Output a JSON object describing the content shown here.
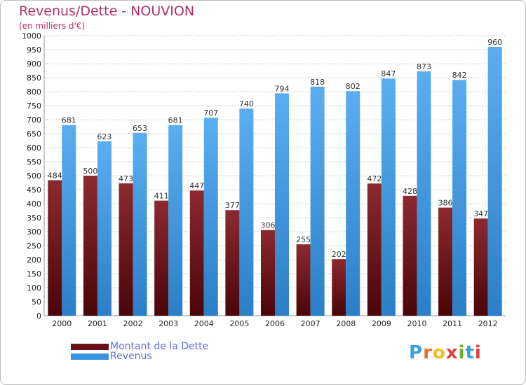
{
  "title": "Revenus/Dette - NOUVION",
  "subtitle": "(en milliers d'€)",
  "colors": {
    "title": "#b0306a",
    "dette_top": "#8b2a2f",
    "dette_bottom": "#4a0508",
    "revenus_top": "#5aaef0",
    "revenus_bottom": "#2a7fc8",
    "grid": "#cfcfcf",
    "legend_text": "#5b6ee0"
  },
  "legend": [
    {
      "label": "Montant de la Dette",
      "color": "#6a1012"
    },
    {
      "label": "Revenus",
      "color": "#3a95e0"
    }
  ],
  "logo": {
    "text": "Proxiti",
    "letter_colors": [
      "#3aa0e0",
      "#e2702a",
      "#f0c020",
      "#e04040",
      "#70b030",
      "#3aa0e0",
      "#e04040"
    ]
  },
  "chart_data": {
    "type": "bar",
    "categories": [
      "2000",
      "2001",
      "2002",
      "2003",
      "2004",
      "2005",
      "2006",
      "2007",
      "2008",
      "2009",
      "2010",
      "2011",
      "2012"
    ],
    "series": [
      {
        "name": "Montant de la Dette",
        "values": [
          484,
          500,
          473,
          411,
          447,
          377,
          306,
          255,
          202,
          472,
          428,
          386,
          347
        ]
      },
      {
        "name": "Revenus",
        "values": [
          681,
          623,
          653,
          681,
          707,
          740,
          794,
          818,
          802,
          847,
          873,
          842,
          960
        ]
      }
    ],
    "ylim": [
      0,
      1000
    ],
    "ytick_step": 50,
    "grid": true,
    "legend_position": "bottom-left"
  }
}
